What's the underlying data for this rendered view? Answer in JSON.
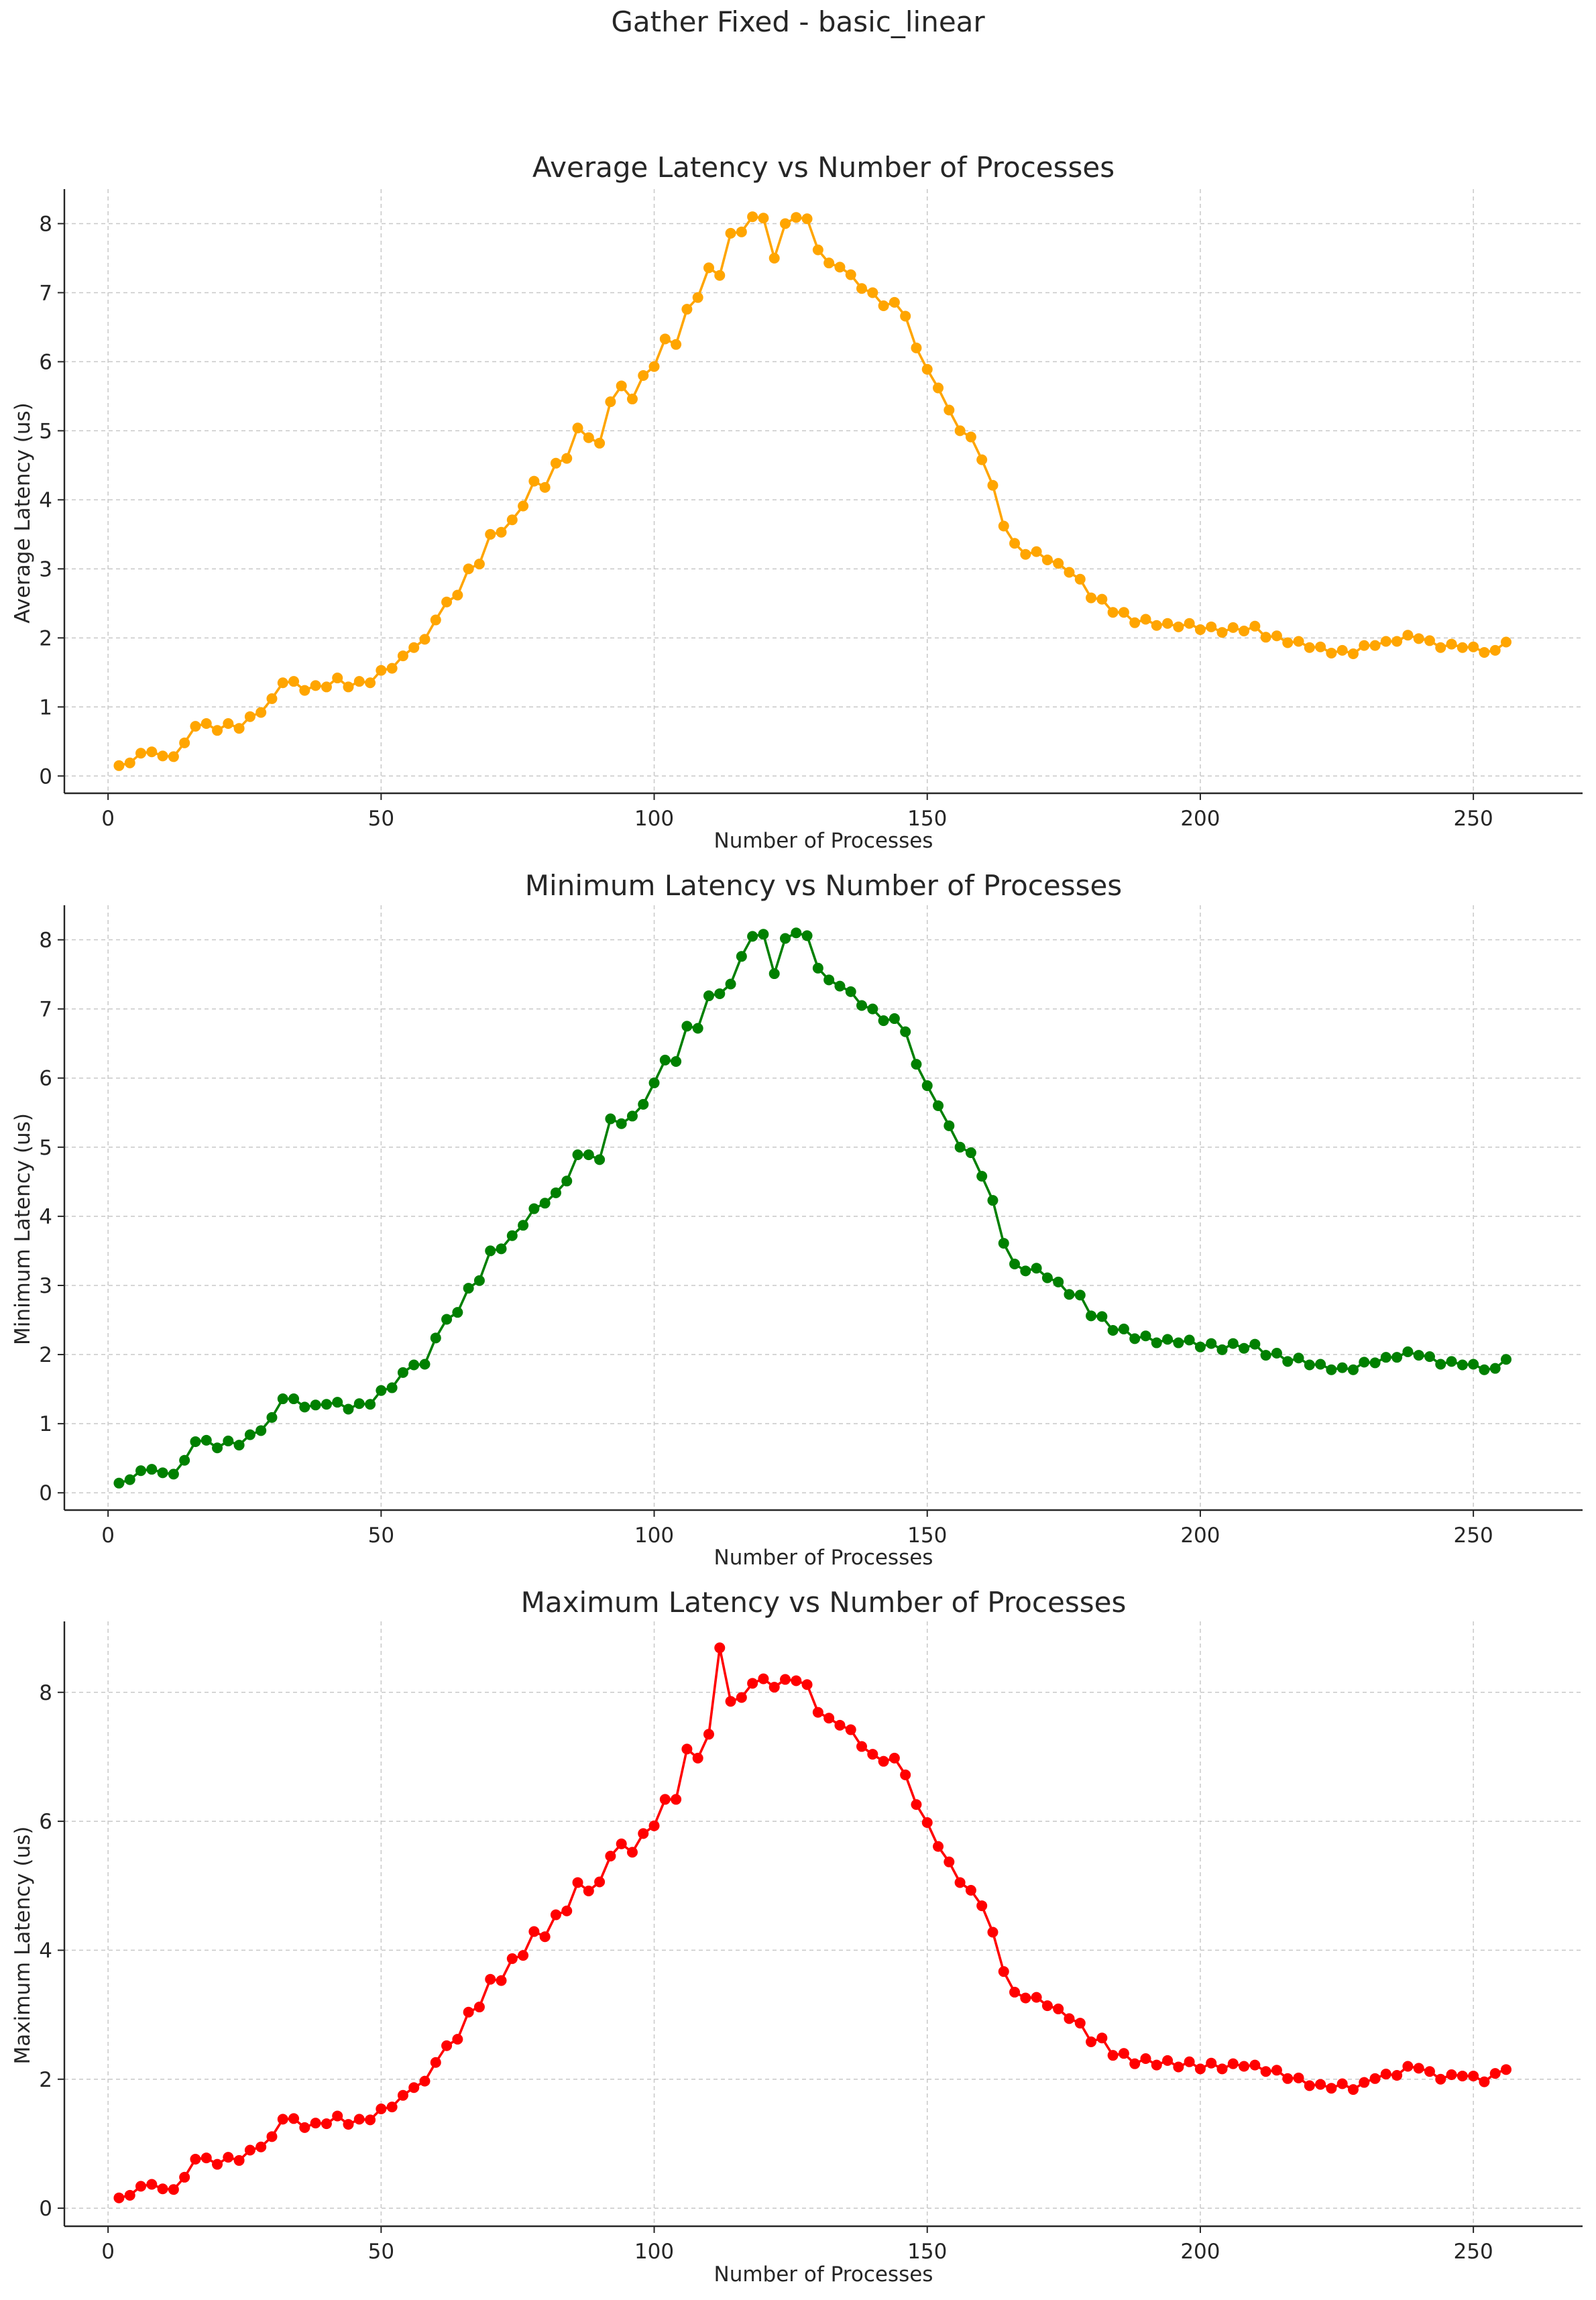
{
  "suptitle": "Gather Fixed - basic_linear",
  "chart_data": [
    {
      "type": "line",
      "title": "Average Latency vs Number of Processes",
      "xlabel": "Number of Processes",
      "ylabel": "Average Latency (us)",
      "color": "#FFA500",
      "xlim": [
        -8,
        270
      ],
      "ylim": [
        -0.25,
        8.5
      ],
      "xticks": [
        0,
        50,
        100,
        150,
        200,
        250
      ],
      "yticks": [
        0,
        1,
        2,
        3,
        4,
        5,
        6,
        7,
        8
      ],
      "grid": true,
      "x": [
        2,
        4,
        6,
        8,
        10,
        12,
        14,
        16,
        18,
        20,
        22,
        24,
        26,
        28,
        30,
        32,
        34,
        36,
        38,
        40,
        42,
        44,
        46,
        48,
        50,
        52,
        54,
        56,
        58,
        60,
        62,
        64,
        66,
        68,
        70,
        72,
        74,
        76,
        78,
        80,
        82,
        84,
        86,
        88,
        90,
        92,
        94,
        96,
        98,
        100,
        102,
        104,
        106,
        108,
        110,
        112,
        114,
        116,
        118,
        120,
        122,
        124,
        126,
        128,
        130,
        132,
        134,
        136,
        138,
        140,
        142,
        144,
        146,
        148,
        150,
        152,
        154,
        156,
        158,
        160,
        162,
        164,
        166,
        168,
        170,
        172,
        174,
        176,
        178,
        180,
        182,
        184,
        186,
        188,
        190,
        192,
        194,
        196,
        198,
        200,
        202,
        204,
        206,
        208,
        210,
        212,
        214,
        216,
        218,
        220,
        222,
        224,
        226,
        228,
        230,
        232,
        234,
        236,
        238,
        240,
        242,
        244,
        246,
        248,
        250,
        252,
        254,
        256
      ],
      "series": [
        {
          "values": [
            0.15,
            0.19,
            0.33,
            0.35,
            0.29,
            0.28,
            0.48,
            0.72,
            0.76,
            0.66,
            0.76,
            0.69,
            0.86,
            0.92,
            1.12,
            1.35,
            1.37,
            1.24,
            1.31,
            1.29,
            1.42,
            1.29,
            1.37,
            1.35,
            1.53,
            1.56,
            1.74,
            1.86,
            1.98,
            2.26,
            2.52,
            2.62,
            3.0,
            3.07,
            3.5,
            3.53,
            3.71,
            3.91,
            4.27,
            4.18,
            4.53,
            4.6,
            5.04,
            4.9,
            4.82,
            5.42,
            5.65,
            5.46,
            5.8,
            5.93,
            6.33,
            6.25,
            6.76,
            6.93,
            7.36,
            7.25,
            7.86,
            7.88,
            8.1,
            8.08,
            7.5,
            8.0,
            8.09,
            8.07,
            7.62,
            7.43,
            7.37,
            7.26,
            7.06,
            7.0,
            6.81,
            6.86,
            6.66,
            6.2,
            5.89,
            5.62,
            5.3,
            5.0,
            4.91,
            4.58,
            4.21,
            3.62,
            3.37,
            3.21,
            3.25,
            3.13,
            3.08,
            2.95,
            2.85,
            2.58,
            2.56,
            2.37,
            2.37,
            2.22,
            2.27,
            2.18,
            2.21,
            2.16,
            2.21,
            2.12,
            2.16,
            2.08,
            2.15,
            2.1,
            2.17,
            2.01,
            2.03,
            1.93,
            1.95,
            1.86,
            1.87,
            1.78,
            1.82,
            1.77,
            1.89,
            1.89,
            1.95,
            1.95,
            2.04,
            1.99,
            1.96,
            1.86,
            1.91,
            1.86,
            1.87,
            1.79,
            1.82,
            1.94
          ]
        }
      ]
    },
    {
      "type": "line",
      "title": "Minimum Latency vs Number of Processes",
      "xlabel": "Number of Processes",
      "ylabel": "Minimum Latency (us)",
      "color": "#008000",
      "xlim": [
        -8,
        270
      ],
      "ylim": [
        -0.25,
        8.5
      ],
      "xticks": [
        0,
        50,
        100,
        150,
        200,
        250
      ],
      "yticks": [
        0,
        1,
        2,
        3,
        4,
        5,
        6,
        7,
        8
      ],
      "grid": true,
      "x": [
        2,
        4,
        6,
        8,
        10,
        12,
        14,
        16,
        18,
        20,
        22,
        24,
        26,
        28,
        30,
        32,
        34,
        36,
        38,
        40,
        42,
        44,
        46,
        48,
        50,
        52,
        54,
        56,
        58,
        60,
        62,
        64,
        66,
        68,
        70,
        72,
        74,
        76,
        78,
        80,
        82,
        84,
        86,
        88,
        90,
        92,
        94,
        96,
        98,
        100,
        102,
        104,
        106,
        108,
        110,
        112,
        114,
        116,
        118,
        120,
        122,
        124,
        126,
        128,
        130,
        132,
        134,
        136,
        138,
        140,
        142,
        144,
        146,
        148,
        150,
        152,
        154,
        156,
        158,
        160,
        162,
        164,
        166,
        168,
        170,
        172,
        174,
        176,
        178,
        180,
        182,
        184,
        186,
        188,
        190,
        192,
        194,
        196,
        198,
        200,
        202,
        204,
        206,
        208,
        210,
        212,
        214,
        216,
        218,
        220,
        222,
        224,
        226,
        228,
        230,
        232,
        234,
        236,
        238,
        240,
        242,
        244,
        246,
        248,
        250,
        252,
        254,
        256
      ],
      "series": [
        {
          "values": [
            0.14,
            0.19,
            0.32,
            0.34,
            0.29,
            0.27,
            0.47,
            0.74,
            0.76,
            0.65,
            0.75,
            0.69,
            0.84,
            0.9,
            1.09,
            1.36,
            1.36,
            1.24,
            1.27,
            1.28,
            1.31,
            1.21,
            1.29,
            1.28,
            1.48,
            1.52,
            1.74,
            1.85,
            1.86,
            2.24,
            2.51,
            2.61,
            2.96,
            3.07,
            3.5,
            3.53,
            3.72,
            3.87,
            4.11,
            4.19,
            4.34,
            4.51,
            4.89,
            4.89,
            4.82,
            5.41,
            5.34,
            5.45,
            5.62,
            5.93,
            6.26,
            6.24,
            6.75,
            6.72,
            7.19,
            7.22,
            7.36,
            7.76,
            8.05,
            8.08,
            7.51,
            8.02,
            8.1,
            8.06,
            7.59,
            7.42,
            7.33,
            7.25,
            7.05,
            7.0,
            6.83,
            6.86,
            6.67,
            6.2,
            5.89,
            5.6,
            5.31,
            5.0,
            4.92,
            4.58,
            4.23,
            3.61,
            3.31,
            3.21,
            3.25,
            3.11,
            3.05,
            2.87,
            2.86,
            2.56,
            2.55,
            2.35,
            2.37,
            2.23,
            2.27,
            2.17,
            2.22,
            2.17,
            2.21,
            2.11,
            2.16,
            2.07,
            2.16,
            2.09,
            2.15,
            1.99,
            2.02,
            1.9,
            1.95,
            1.85,
            1.86,
            1.78,
            1.81,
            1.78,
            1.89,
            1.88,
            1.96,
            1.96,
            2.04,
            1.99,
            1.97,
            1.86,
            1.9,
            1.85,
            1.86,
            1.78,
            1.8,
            1.93
          ]
        }
      ]
    },
    {
      "type": "line",
      "title": "Maximum Latency vs Number of Processes",
      "xlabel": "Number of Processes",
      "ylabel": "Maximum Latency (us)",
      "color": "#FF0000",
      "xlim": [
        -8,
        270
      ],
      "ylim": [
        -0.28,
        9.1
      ],
      "xticks": [
        0,
        50,
        100,
        150,
        200,
        250
      ],
      "yticks": [
        0,
        2,
        4,
        6,
        8
      ],
      "grid": true,
      "x": [
        2,
        4,
        6,
        8,
        10,
        12,
        14,
        16,
        18,
        20,
        22,
        24,
        26,
        28,
        30,
        32,
        34,
        36,
        38,
        40,
        42,
        44,
        46,
        48,
        50,
        52,
        54,
        56,
        58,
        60,
        62,
        64,
        66,
        68,
        70,
        72,
        74,
        76,
        78,
        80,
        82,
        84,
        86,
        88,
        90,
        92,
        94,
        96,
        98,
        100,
        102,
        104,
        106,
        108,
        110,
        112,
        114,
        116,
        118,
        120,
        122,
        124,
        126,
        128,
        130,
        132,
        134,
        136,
        138,
        140,
        142,
        144,
        146,
        148,
        150,
        152,
        154,
        156,
        158,
        160,
        162,
        164,
        166,
        168,
        170,
        172,
        174,
        176,
        178,
        180,
        182,
        184,
        186,
        188,
        190,
        192,
        194,
        196,
        198,
        200,
        202,
        204,
        206,
        208,
        210,
        212,
        214,
        216,
        218,
        220,
        222,
        224,
        226,
        228,
        230,
        232,
        234,
        236,
        238,
        240,
        242,
        244,
        246,
        248,
        250,
        252,
        254,
        256
      ],
      "series": [
        {
          "values": [
            0.16,
            0.2,
            0.34,
            0.37,
            0.3,
            0.29,
            0.48,
            0.76,
            0.78,
            0.68,
            0.79,
            0.74,
            0.9,
            0.95,
            1.11,
            1.38,
            1.39,
            1.25,
            1.32,
            1.31,
            1.43,
            1.3,
            1.38,
            1.37,
            1.54,
            1.57,
            1.75,
            1.87,
            1.97,
            2.26,
            2.52,
            2.62,
            3.04,
            3.12,
            3.55,
            3.53,
            3.87,
            3.92,
            4.29,
            4.21,
            4.55,
            4.61,
            5.05,
            4.92,
            5.06,
            5.46,
            5.65,
            5.52,
            5.81,
            5.93,
            6.34,
            6.34,
            7.12,
            6.98,
            7.35,
            8.69,
            7.86,
            7.92,
            8.14,
            8.21,
            8.08,
            8.2,
            8.18,
            8.12,
            7.69,
            7.6,
            7.49,
            7.42,
            7.16,
            7.04,
            6.93,
            6.98,
            6.72,
            6.26,
            5.98,
            5.61,
            5.37,
            5.05,
            4.93,
            4.69,
            4.28,
            3.67,
            3.35,
            3.26,
            3.27,
            3.14,
            3.09,
            2.94,
            2.87,
            2.58,
            2.64,
            2.37,
            2.4,
            2.24,
            2.32,
            2.22,
            2.29,
            2.19,
            2.27,
            2.16,
            2.25,
            2.16,
            2.24,
            2.2,
            2.22,
            2.12,
            2.14,
            2.01,
            2.02,
            1.9,
            1.92,
            1.86,
            1.93,
            1.84,
            1.95,
            2.01,
            2.08,
            2.06,
            2.2,
            2.17,
            2.12,
            2.0,
            2.07,
            2.05,
            2.05,
            1.96,
            2.09,
            2.15
          ]
        }
      ]
    }
  ]
}
